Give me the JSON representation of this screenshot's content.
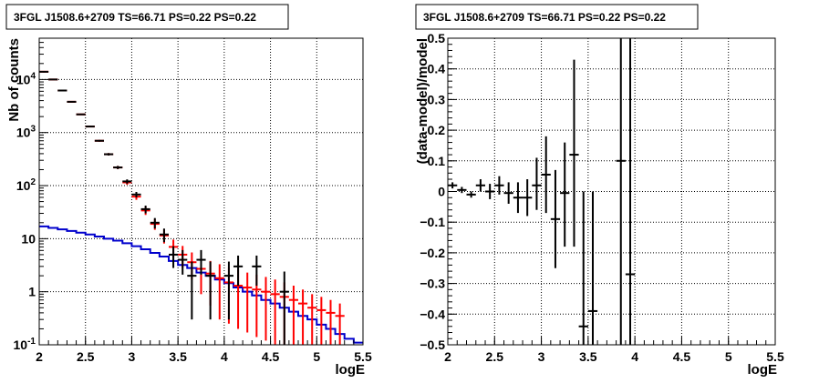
{
  "chart_data": [
    {
      "type": "scatter",
      "title": "3FGL J1508.6+2709 TS=66.71 PS=0.22 PS=0.22",
      "xlabel": "logE",
      "ylabel": "Nb of counts",
      "yscale": "log",
      "xlim": [
        2,
        5.5
      ],
      "ylim": [
        0.1,
        60000
      ],
      "grid": true,
      "x_ticks": [
        "2",
        "2.5",
        "3",
        "3.5",
        "4",
        "4.5",
        "5",
        "5.5"
      ],
      "y_ticks": [
        {
          "value": 0.1,
          "base": "10",
          "exp": "-1",
          "label": ""
        },
        {
          "value": 1,
          "base": "",
          "exp": "",
          "label": "1"
        },
        {
          "value": 10,
          "base": "",
          "exp": "",
          "label": "10"
        },
        {
          "value": 100,
          "base": "10",
          "exp": "2",
          "label": ""
        },
        {
          "value": 1000,
          "base": "10",
          "exp": "3",
          "label": ""
        },
        {
          "value": 10000,
          "base": "10",
          "exp": "4",
          "label": ""
        }
      ],
      "colors": {
        "data": "#000000",
        "model_total": "#ff0000",
        "model_source": "#0000cc"
      },
      "series": [
        {
          "kind": "points",
          "x": [
            2.05,
            2.15,
            2.25,
            2.35,
            2.45,
            2.55,
            2.65,
            2.75,
            2.85,
            2.95,
            3.05,
            3.15,
            3.25,
            3.35,
            3.45,
            3.55,
            3.65,
            3.75,
            3.85,
            3.95,
            4.05,
            4.15,
            4.25,
            4.35,
            4.45,
            4.55,
            4.65,
            4.75,
            4.85,
            4.95,
            5.05,
            5.15,
            5.25,
            5.35
          ],
          "y": [
            14000,
            10000,
            6200,
            3800,
            2200,
            1300,
            700,
            390,
            220,
            120,
            68,
            36,
            20,
            12,
            5,
            4,
            2,
            4,
            2,
            0,
            2,
            3,
            0,
            3,
            0,
            0,
            1,
            0,
            0,
            0,
            0,
            0,
            0,
            0
          ],
          "y_low": [
            13600,
            9800,
            6000,
            3700,
            2150,
            1260,
            675,
            370,
            205,
            109,
            60,
            30,
            15.6,
            8.6,
            2.8,
            2.1,
            0.3,
            2.1,
            0.3,
            0,
            0.3,
            1.3,
            0,
            1.3,
            0,
            0,
            0.1,
            0,
            0,
            0,
            0,
            0,
            0,
            0
          ],
          "y_high": [
            14400,
            10200,
            6400,
            3900,
            2250,
            1340,
            725,
            410,
            235,
            131,
            76,
            42,
            24.5,
            15.5,
            7.2,
            6.1,
            3.7,
            6.1,
            3.7,
            0,
            3.7,
            4.8,
            0,
            4.8,
            0,
            0,
            2.4,
            0,
            0,
            0,
            0,
            0,
            0,
            0
          ]
        },
        {
          "kind": "points",
          "x": [
            2.05,
            2.15,
            2.25,
            2.35,
            2.45,
            2.55,
            2.65,
            2.75,
            2.85,
            2.95,
            3.05,
            3.15,
            3.25,
            3.35,
            3.45,
            3.55,
            3.65,
            3.75,
            3.85,
            3.95,
            4.05,
            4.15,
            4.25,
            4.35,
            4.45,
            4.55,
            4.65,
            4.75,
            4.85,
            4.95,
            5.05,
            5.15,
            5.25
          ],
          "y": [
            14000,
            10000,
            6200,
            3800,
            2200,
            1300,
            700,
            390,
            220,
            115,
            62,
            34,
            19,
            11.5,
            7,
            5,
            3.6,
            2.7,
            2.2,
            1.8,
            1.5,
            1.3,
            1.2,
            1.1,
            1.0,
            0.9,
            0.8,
            0.7,
            0.6,
            0.5,
            0.45,
            0.4,
            0.35
          ],
          "y_low": [
            13600,
            9800,
            6000,
            3700,
            2150,
            1260,
            675,
            370,
            205,
            104,
            54,
            28,
            14.7,
            8.1,
            4.4,
            2.8,
            1.7,
            0.9,
            0.55,
            0.3,
            0.25,
            0.2,
            0.17,
            0.14,
            0.12,
            0.1,
            0.1,
            0.1,
            0.1,
            0.1,
            0.1,
            0.1,
            0.1
          ],
          "y_high": [
            14400,
            10200,
            6400,
            3900,
            2250,
            1340,
            725,
            410,
            235,
            126,
            70,
            40,
            23.4,
            15.0,
            9.6,
            7.3,
            5.5,
            4.5,
            3.8,
            3.3,
            2.9,
            2.6,
            2.3,
            2.1,
            1.9,
            1.7,
            1.5,
            1.3,
            1.1,
            0.9,
            0.8,
            0.7,
            0.6
          ]
        },
        {
          "kind": "step",
          "x_edges": [
            2.0,
            2.1,
            2.2,
            2.3,
            2.4,
            2.5,
            2.6,
            2.7,
            2.8,
            2.9,
            3.0,
            3.1,
            3.2,
            3.3,
            3.4,
            3.5,
            3.6,
            3.7,
            3.8,
            3.9,
            4.0,
            4.1,
            4.2,
            4.3,
            4.4,
            4.5,
            4.6,
            4.7,
            4.8,
            4.9,
            5.0,
            5.1,
            5.2,
            5.3,
            5.4,
            5.5
          ],
          "values": [
            17,
            16,
            15,
            14,
            13,
            12,
            11,
            10,
            9.2,
            8.2,
            7.2,
            6.3,
            5.4,
            4.6,
            3.8,
            3.2,
            2.8,
            2.3,
            2.0,
            1.7,
            1.45,
            1.2,
            1.0,
            0.85,
            0.7,
            0.6,
            0.5,
            0.42,
            0.35,
            0.3,
            0.24,
            0.2,
            0.16,
            0.13,
            0.11
          ]
        }
      ]
    },
    {
      "type": "scatter",
      "title": "3FGL J1508.6+2709 TS=66.71 PS=0.22 PS=0.22",
      "xlabel": "logE",
      "ylabel": "(data-model)/model",
      "xlim": [
        2,
        5.5
      ],
      "ylim": [
        -0.5,
        0.5
      ],
      "grid": true,
      "x_ticks": [
        "2",
        "2.5",
        "3",
        "3.5",
        "4",
        "4.5",
        "5",
        "5.5"
      ],
      "y_ticks": [
        "-0.5",
        "-0.4",
        "-0.3",
        "-0.2",
        "-0.1",
        "0",
        "0.1",
        "0.2",
        "0.3",
        "0.4",
        "0.5"
      ],
      "colors": {
        "data": "#000000"
      },
      "series": [
        {
          "kind": "points",
          "x": [
            2.05,
            2.15,
            2.25,
            2.35,
            2.45,
            2.55,
            2.65,
            2.75,
            2.85,
            2.95,
            3.05,
            3.15,
            3.25,
            3.35,
            3.45,
            3.55,
            3.85,
            3.95
          ],
          "y": [
            0.02,
            0.005,
            -0.01,
            0.02,
            0.0,
            0.02,
            -0.005,
            -0.02,
            -0.02,
            0.02,
            0.055,
            -0.09,
            -0.005,
            0.12,
            -0.44,
            -0.39,
            0.1,
            -0.27
          ],
          "y_low": [
            0.01,
            -0.005,
            -0.02,
            0.0,
            -0.025,
            -0.01,
            -0.04,
            -0.07,
            -0.08,
            -0.06,
            -0.07,
            -0.25,
            -0.18,
            -0.18,
            -0.5,
            -0.5,
            -0.5,
            -0.5
          ],
          "y_high": [
            0.03,
            0.015,
            0.0,
            0.04,
            0.025,
            0.05,
            0.03,
            0.03,
            0.04,
            0.11,
            0.18,
            0.07,
            0.16,
            0.43,
            0.0,
            0.0,
            0.5,
            0.5
          ]
        }
      ]
    }
  ]
}
